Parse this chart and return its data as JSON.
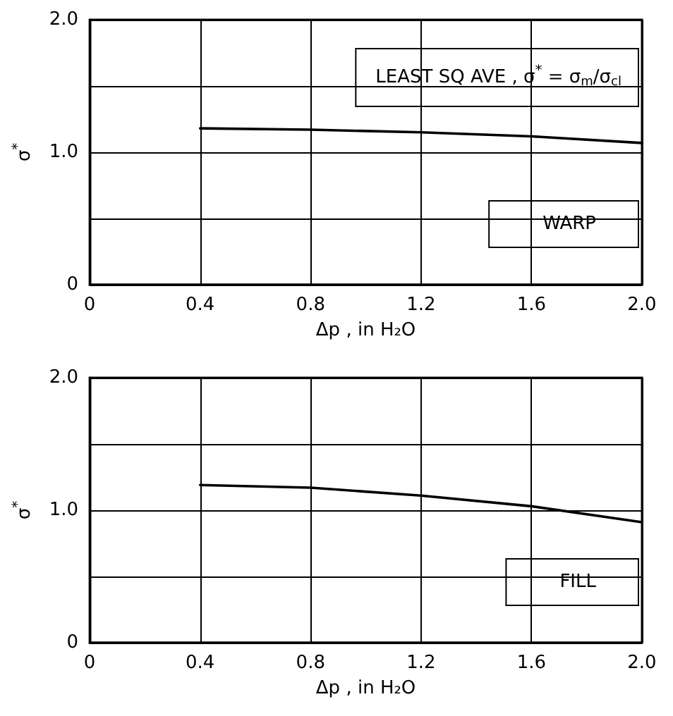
{
  "chart_data": [
    {
      "type": "line",
      "xlabel": "Δp , in H₂O",
      "ylabel": "σ$^{*}$",
      "annotations": [
        "LEAST SQ AVE , σ$^{*}$ = σ$_{m}$/σ$_{cl}$",
        "WARP"
      ],
      "x": [
        0.4,
        0.8,
        1.2,
        1.6,
        2.0
      ],
      "series": [
        {
          "color": "#000000",
          "values": [
            1.18,
            1.17,
            1.15,
            1.12,
            1.07
          ]
        }
      ],
      "xlim": [
        0,
        2.0
      ],
      "xticks": [
        0,
        0.4,
        0.8,
        1.2,
        1.6,
        {
          "value": 2.0,
          "label": "2.0"
        }
      ],
      "ylim": [
        0,
        2.0
      ],
      "yticks": [
        0,
        {
          "value": 0.5,
          "label": null
        },
        {
          "value": 1.0,
          "label": "1.0"
        },
        {
          "value": 1.5,
          "label": null
        },
        {
          "value": 2.0,
          "label": "2.0"
        }
      ],
      "grid": true,
      "marker": "none",
      "line_style": "solid"
    },
    {
      "type": "line",
      "xlabel": "Δp , in H₂O",
      "ylabel": "σ$^{*}$",
      "annotations": [
        "FILL"
      ],
      "x": [
        0.4,
        0.8,
        1.2,
        1.6,
        2.0
      ],
      "series": [
        {
          "color": "#000000",
          "values": [
            1.19,
            1.17,
            1.11,
            1.03,
            0.91
          ]
        }
      ],
      "xlim": [
        0,
        2.0
      ],
      "xticks": [
        0,
        0.4,
        0.8,
        1.2,
        1.6,
        {
          "value": 2.0,
          "label": "2.0"
        }
      ],
      "ylim": [
        0,
        2.0
      ],
      "yticks": [
        0,
        {
          "value": 0.5,
          "label": null
        },
        {
          "value": 1.0,
          "label": "1.0"
        },
        {
          "value": 1.5,
          "label": null
        },
        {
          "value": 2.0,
          "label": "2.0"
        }
      ],
      "grid": true,
      "marker": "none",
      "line_style": "solid"
    }
  ]
}
